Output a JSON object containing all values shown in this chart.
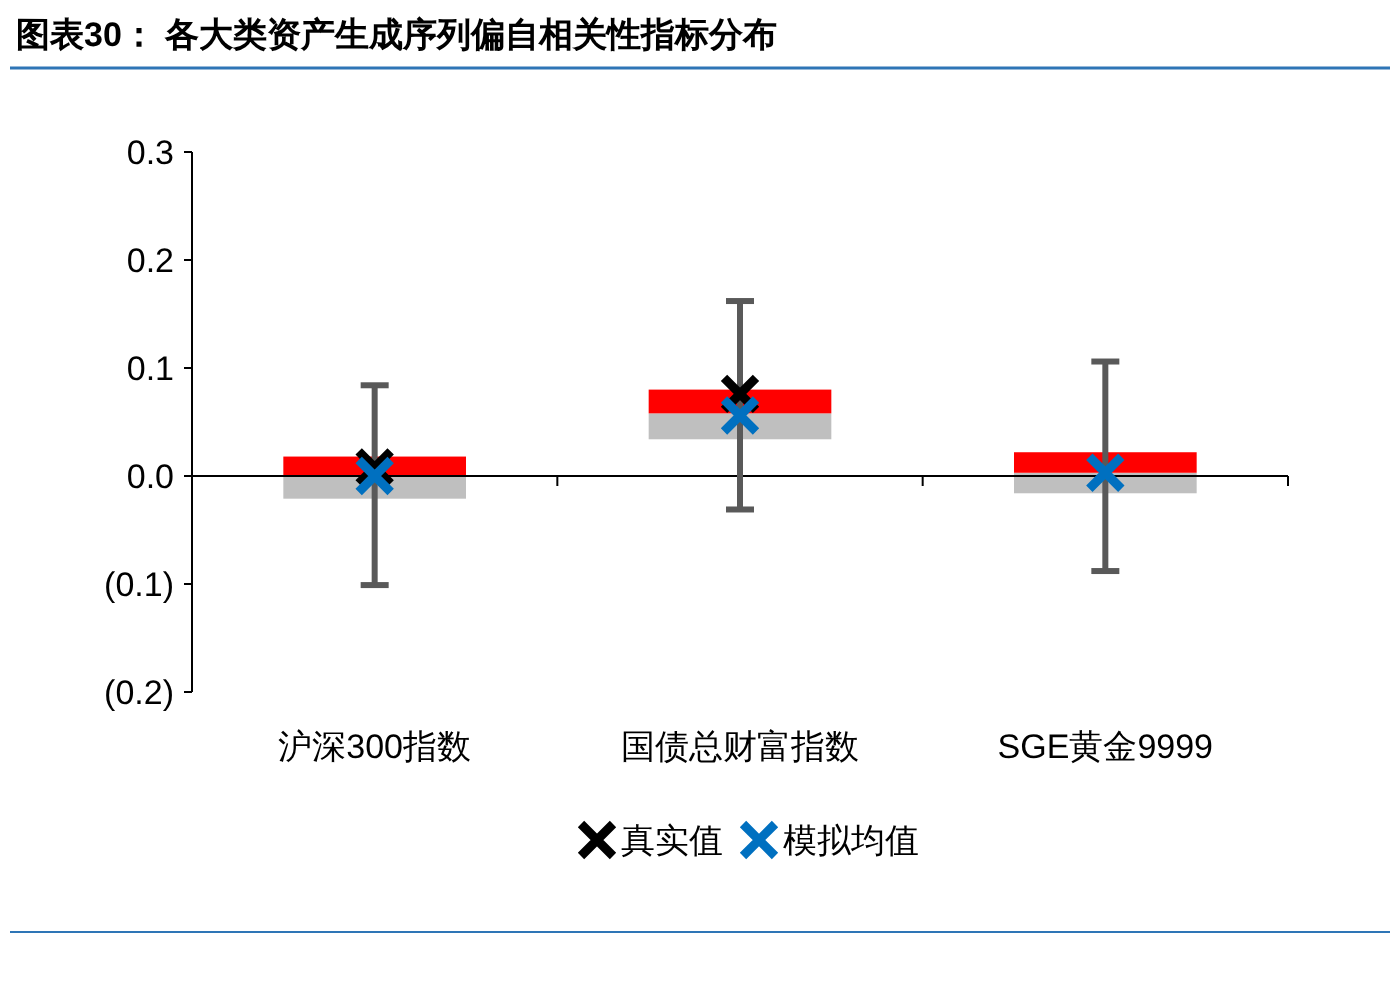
{
  "chart_data": {
    "type": "box",
    "title": "图表30：  各大类资产生成序列偏自相关性指标分布",
    "categories": [
      "沪深300指数",
      "国债总财富指数",
      "SGE黄金9999"
    ],
    "boxes": [
      {
        "low": -0.101,
        "q1": -0.021,
        "median": 0.0,
        "q3": 0.018,
        "high": 0.084
      },
      {
        "low": -0.031,
        "q1": 0.034,
        "median": 0.058,
        "q3": 0.08,
        "high": 0.162
      },
      {
        "low": -0.088,
        "q1": -0.016,
        "median": 0.003,
        "q3": 0.022,
        "high": 0.106
      }
    ],
    "series": [
      {
        "name": "真实值",
        "type": "scatter",
        "color": "#000000",
        "x": [
          "沪深300指数",
          "国债总财富指数"
        ],
        "values": [
          0.008,
          0.076
        ]
      },
      {
        "name": "模拟均值",
        "type": "scatter",
        "color": "#0070c0",
        "x": [
          "沪深300指数",
          "国债总财富指数",
          "SGE黄金9999"
        ],
        "values": [
          0.0,
          0.056,
          0.003
        ]
      }
    ],
    "marker": "cross",
    "ylim": [
      -0.2,
      0.3
    ],
    "yticks": [
      {
        "value": -0.2,
        "label": "(0.2)"
      },
      {
        "value": -0.1,
        "label": "(0.1)"
      },
      {
        "value": 0,
        "label": "0.0"
      },
      {
        "value": 0.1,
        "label": "0.1"
      },
      {
        "value": 0.2,
        "label": "0.2"
      },
      {
        "value": 0.3,
        "label": "0.3"
      }
    ],
    "legend": "bottom"
  }
}
